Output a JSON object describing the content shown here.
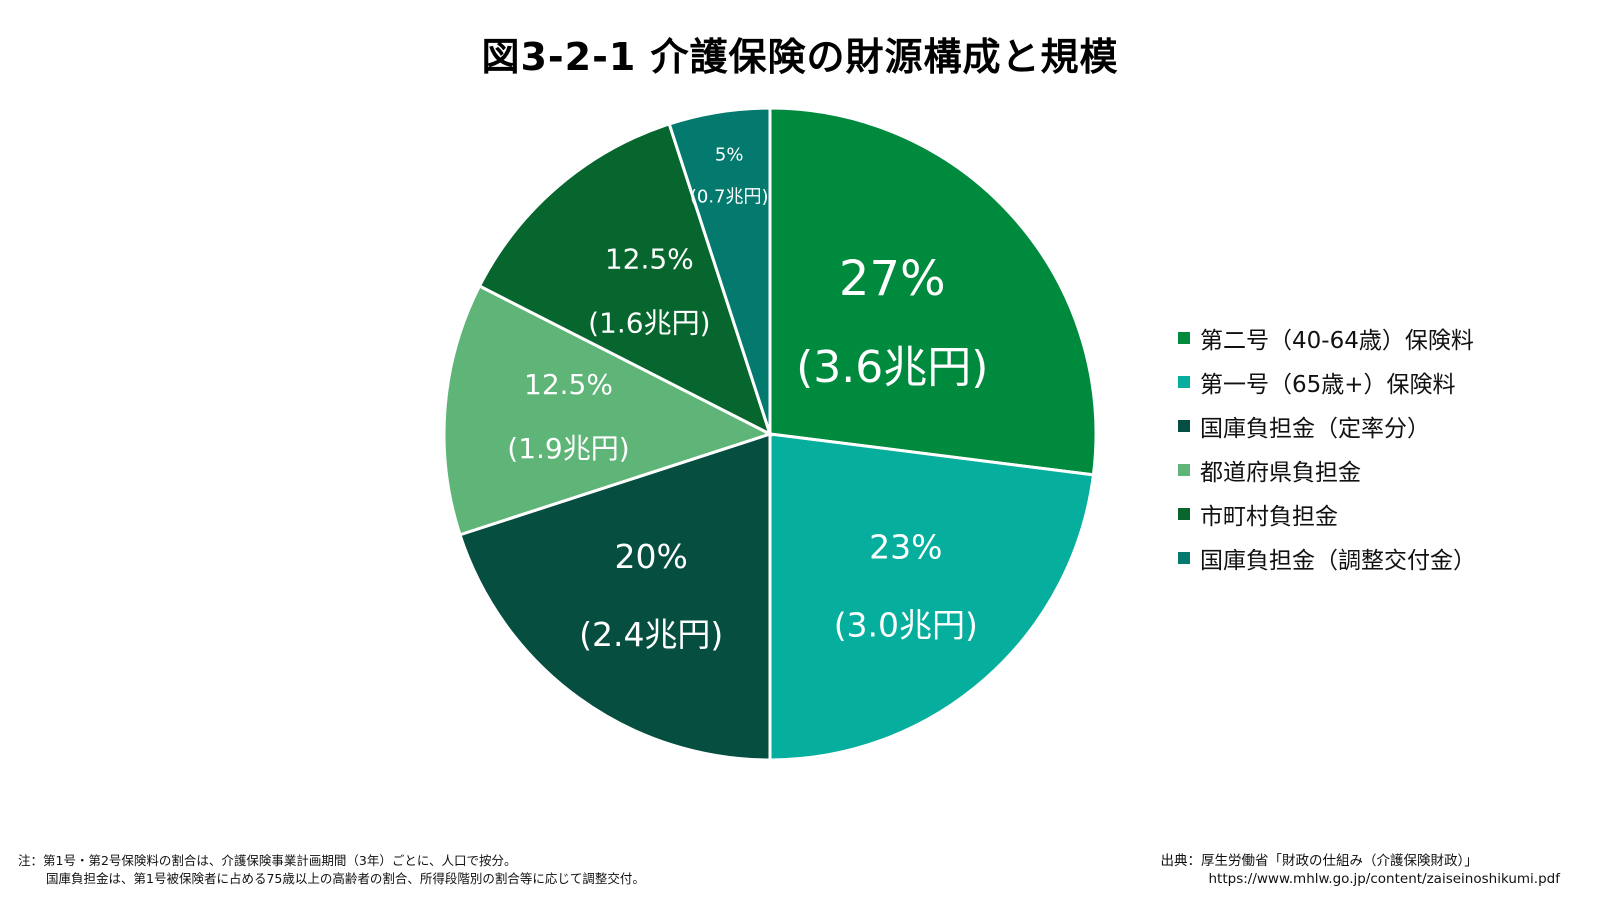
{
  "title": "図3-2-1 介護保険の財源構成と規模",
  "chart_data": {
    "type": "pie",
    "title": "図3-2-1 介護保険の財源構成と規模",
    "slices": [
      {
        "name": "第二号（40-64歳）保険料",
        "value": 27,
        "pct_label": "27%",
        "amount_label": "(3.6兆円)",
        "color": "#008A3E"
      },
      {
        "name": "第一号（65歳+）保険料",
        "value": 23,
        "pct_label": "23%",
        "amount_label": "(3.0兆円)",
        "color": "#06AE9E"
      },
      {
        "name": "国庫負担金（定率分）",
        "value": 20,
        "pct_label": "20%",
        "amount_label": "(2.4兆円)",
        "color": "#064E40"
      },
      {
        "name": "都道府県負担金",
        "value": 12.5,
        "pct_label": "12.5%",
        "amount_label": "(1.9兆円)",
        "color": "#5EB577"
      },
      {
        "name": "市町村負担金",
        "value": 12.5,
        "pct_label": "12.5%",
        "amount_label": "(1.6兆円)",
        "color": "#06662D"
      },
      {
        "name": "国庫負担金（調整交付金）",
        "value": 5,
        "pct_label": "5%",
        "amount_label": "(0.7兆円)",
        "color": "#047A6E"
      }
    ],
    "start": "12 o'clock",
    "direction": "clockwise",
    "legend_position": "right"
  },
  "footnote": {
    "line1": "注：第1号・第2号保険料の割合は、介護保険事業計画期間（3年）ごとに、人口で按分。",
    "line2": "国庫負担金は、第1号被保険者に占める75歳以上の高齢者の割合、所得段階別の割合等に応じて調整交付。"
  },
  "source": {
    "line1": "出典：厚生労働省「財政の仕組み（介護保険財政）」",
    "url": "https://www.mhlw.go.jp/content/zaiseinoshikumi.pdf"
  }
}
